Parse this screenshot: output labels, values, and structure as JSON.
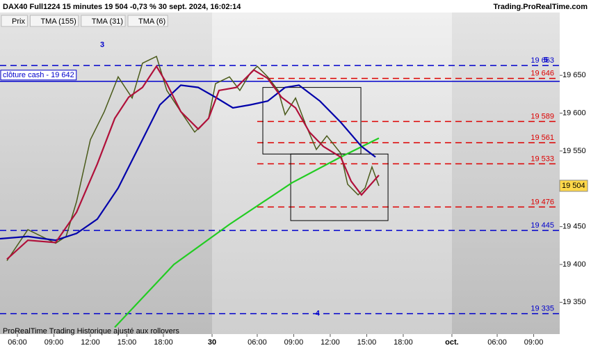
{
  "chart_data": {
    "type": "line",
    "title": "DAX40 Full1224 15 minutes 19 504 -0,73 % 30 sept. 2024, 16:02:14",
    "source": "Trading.ProRealTime.com",
    "footer": "ProRealTime Trading Historique ajusté aux rollovers",
    "xlim": [
      0,
      46
    ],
    "ylim": [
      19308,
      19733
    ],
    "xticks": [
      {
        "value": 1.43,
        "label": "06:00"
      },
      {
        "value": 4.43,
        "label": "09:00"
      },
      {
        "value": 7.43,
        "label": "12:00"
      },
      {
        "value": 10.43,
        "label": "15:00"
      },
      {
        "value": 13.43,
        "label": "18:00"
      },
      {
        "value": 17.43,
        "label": "30",
        "bold": true
      },
      {
        "value": 21.14,
        "label": "06:00"
      },
      {
        "value": 24.14,
        "label": "09:00"
      },
      {
        "value": 27.14,
        "label": "12:00"
      },
      {
        "value": 30.14,
        "label": "15:00"
      },
      {
        "value": 33.14,
        "label": "18:00"
      },
      {
        "value": 37.14,
        "label": "oct.",
        "bold": true
      },
      {
        "value": 40.86,
        "label": "06:00"
      },
      {
        "value": 43.86,
        "label": "09:00"
      }
    ],
    "yticks": [
      {
        "value": 19650,
        "label": "19 650"
      },
      {
        "value": 19600,
        "label": "19 600"
      },
      {
        "value": 19550,
        "label": "19 550"
      },
      {
        "value": 19500,
        "label": "19 500"
      },
      {
        "value": 19450,
        "label": "19 450"
      },
      {
        "value": 19400,
        "label": "19 400"
      },
      {
        "value": 19350,
        "label": "19 350"
      }
    ],
    "series": [
      {
        "name": "Prix",
        "color": "#4a5a1a",
        "x": [
          0.57,
          2.29,
          4.57,
          5.43,
          6.29,
          7.43,
          8.57,
          9.71,
          10.86,
          11.71,
          12.86,
          13.71,
          14.86,
          16,
          17.14,
          17.71,
          18.86,
          19.71,
          20.57,
          21.14,
          22,
          22.86,
          23.43,
          24.29,
          25.14,
          26,
          26.86,
          28,
          28.57,
          29.43,
          30,
          30.57,
          31.14
        ],
        "values": [
          19405,
          19446,
          19428,
          19437,
          19483,
          19565,
          19602,
          19648,
          19620,
          19666,
          19675,
          19630,
          19602,
          19575,
          19593,
          19639,
          19648,
          19630,
          19653,
          19662,
          19648,
          19630,
          19598,
          19620,
          19584,
          19552,
          19570,
          19547,
          19506,
          19492,
          19501,
          19529,
          19504
        ]
      },
      {
        "name": "TMA (155)",
        "color": "#22cc22",
        "x": [
          9.43,
          14.29,
          18.86,
          24,
          28,
          31.14
        ],
        "values": [
          19317,
          19400,
          19453,
          19508,
          19542,
          19567
        ]
      },
      {
        "name": "TMA (31)",
        "color": "#0000aa",
        "x": [
          0,
          2.29,
          4.57,
          6.29,
          8,
          9.71,
          11.43,
          13.14,
          14.86,
          16.29,
          17.71,
          19.14,
          20.57,
          22,
          23.43,
          24.57,
          26.29,
          28,
          29.71,
          30.86
        ],
        "values": [
          19434,
          19437,
          19432,
          19441,
          19460,
          19501,
          19556,
          19611,
          19637,
          19634,
          19621,
          19607,
          19611,
          19616,
          19634,
          19637,
          19616,
          19588,
          19556,
          19542
        ]
      },
      {
        "name": "TMA (6)",
        "color": "#b0103a",
        "x": [
          0.57,
          2.29,
          4.57,
          6.29,
          8,
          9.43,
          10.57,
          11.71,
          12.86,
          13.71,
          14.86,
          16.29,
          17.14,
          18,
          19.43,
          20.86,
          22,
          23.14,
          24.29,
          25.43,
          26.57,
          28,
          28.86,
          29.71,
          31.14
        ],
        "values": [
          19407,
          19432,
          19429,
          19469,
          19533,
          19593,
          19621,
          19634,
          19662,
          19639,
          19602,
          19579,
          19593,
          19630,
          19634,
          19657,
          19646,
          19621,
          19607,
          19575,
          19556,
          19542,
          19510,
          19492,
          19518
        ]
      }
    ],
    "levels": [
      {
        "value": 19663,
        "label": "19 663",
        "color": "#0000cc",
        "style": "dashed",
        "start": 0
      },
      {
        "value": 19642,
        "label": "clôture cash -  19 642",
        "color": "#0000cc",
        "style": "solid",
        "start": 0
      },
      {
        "value": 19646,
        "label": "19 646",
        "color": "#dd0000",
        "style": "dashed",
        "start": 21.14
      },
      {
        "value": 19589,
        "label": "19 589",
        "color": "#dd0000",
        "style": "dashed",
        "start": 21.14
      },
      {
        "value": 19561,
        "label": "19 561",
        "color": "#dd0000",
        "style": "dashed",
        "start": 21.14
      },
      {
        "value": 19533,
        "label": "19 533",
        "color": "#dd0000",
        "style": "dashed",
        "start": 21.14
      },
      {
        "value": 19476,
        "label": "19 476",
        "color": "#dd0000",
        "style": "dashed",
        "start": 21.14
      },
      {
        "value": 19445,
        "label": "19 445",
        "color": "#0000cc",
        "style": "dashed",
        "start": 0
      },
      {
        "value": 19335,
        "label": "19 335",
        "color": "#0000cc",
        "style": "dashed",
        "start": 0
      }
    ],
    "boxes": [
      {
        "x": [
          21.6,
          29.66
        ],
        "y": [
          19634,
          19546
        ]
      },
      {
        "x": [
          23.89,
          31.89
        ],
        "y": [
          19546,
          19458
        ]
      }
    ],
    "annotations": [
      {
        "text": "3",
        "x": 8.4,
        "y": 19690
      },
      {
        "text": "4",
        "x": 26.1,
        "y": 19335
      },
      {
        "text": "5",
        "x": 44.86,
        "y": 19670
      }
    ],
    "last_price": {
      "value": 19504,
      "label": "19 504"
    }
  }
}
